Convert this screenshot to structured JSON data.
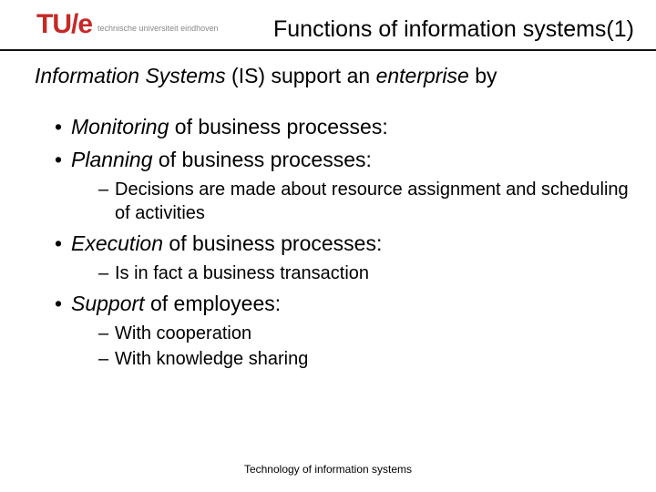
{
  "colors": {
    "logo_red": "#c62828",
    "text": "#000000",
    "subtext": "#888888",
    "divider": "#111111",
    "background": "#ffffff"
  },
  "typography": {
    "title_fontsize": 25,
    "body_fontsize": 23,
    "sub_fontsize": 20,
    "footer_fontsize": 12,
    "logo_fontsize": 30,
    "logo_sub_fontsize": 9
  },
  "logo": {
    "mark_t": "T",
    "mark_u": "U",
    "mark_slash": "/",
    "mark_e": "e",
    "subtitle": "technische universiteit eindhoven"
  },
  "title": "Functions of information systems(1)",
  "intro": {
    "prefix_italic": "Information Systems",
    "mid": " (IS) support an ",
    "suffix_italic": "enterprise",
    "tail": " by"
  },
  "bullets": [
    {
      "italic": "Monitoring",
      "rest": " of business processes:",
      "sub": []
    },
    {
      "italic": "Planning",
      "rest": " of business processes:",
      "sub": [
        "Decisions are made about resource assignment and scheduling of activities"
      ]
    },
    {
      "italic": "Execution",
      "rest": " of business processes:",
      "sub": [
        "Is in fact a business transaction"
      ]
    },
    {
      "italic": "Support",
      "rest": " of employees:",
      "sub": [
        "With cooperation",
        "With knowledge sharing"
      ]
    }
  ],
  "footer": "Technology of  information systems"
}
